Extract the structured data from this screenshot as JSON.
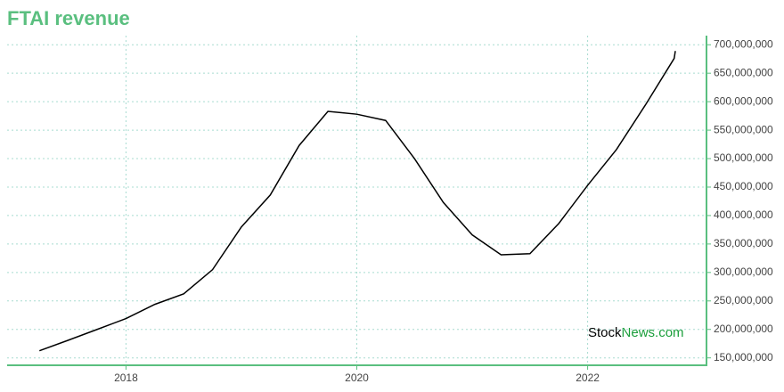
{
  "chart_data": {
    "type": "line",
    "title": "FTAI revenue",
    "watermark": [
      "Stock",
      "News.com"
    ],
    "x": [
      2017.25,
      2017.5,
      2017.75,
      2018,
      2018.25,
      2018.5,
      2018.75,
      2019,
      2019.25,
      2019.5,
      2019.75,
      2020,
      2020.25,
      2020.5,
      2020.75,
      2021,
      2021.25,
      2021.5,
      2021.75,
      2022,
      2022.25,
      2022.5,
      2022.75,
      2022.76
    ],
    "series": [
      {
        "name": "Revenue",
        "color": "#000000",
        "values": [
          162500000,
          181000000,
          200000000,
          219000000,
          244000000,
          262500000,
          305000000,
          380000000,
          436000000,
          523000000,
          583000000,
          578000000,
          567000000,
          500000000,
          423000000,
          366000000,
          331000000,
          333000000,
          386000000,
          453000000,
          516000000,
          594000000,
          676000000,
          689000000
        ]
      }
    ],
    "xlim": [
      2016.97,
      2023.03
    ],
    "xticks": [
      2018,
      2020,
      2022
    ],
    "ylim": [
      137000000,
      716000000
    ],
    "yticks": [
      {
        "value": 150000000,
        "label": "150,000,000"
      },
      {
        "value": 200000000,
        "label": "200,000,000"
      },
      {
        "value": 250000000,
        "label": "250,000,000"
      },
      {
        "value": 300000000,
        "label": "300,000,000"
      },
      {
        "value": 350000000,
        "label": "350,000,000"
      },
      {
        "value": 400000000,
        "label": "400,000,000"
      },
      {
        "value": 450000000,
        "label": "450,000,000"
      },
      {
        "value": 500000000,
        "label": "500,000,000"
      },
      {
        "value": 550000000,
        "label": "550,000,000"
      },
      {
        "value": 600000000,
        "label": "600,000,000"
      },
      {
        "value": 650000000,
        "label": "650,000,000"
      },
      {
        "value": 700000000,
        "label": "700,000,000"
      }
    ],
    "grid": true,
    "axis_color": "#5abf7f",
    "grid_color": "#a8dcd0"
  }
}
